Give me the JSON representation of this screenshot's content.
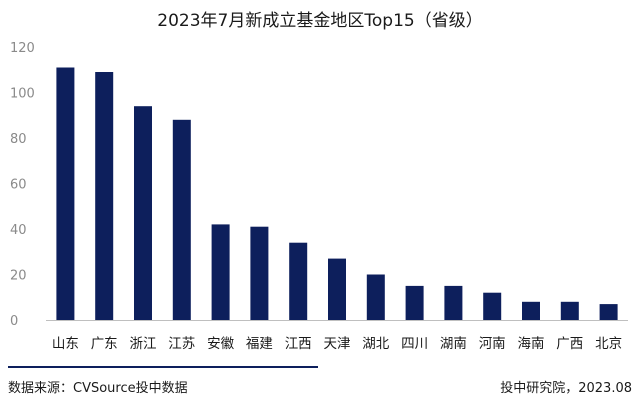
{
  "footer": {
    "source": "数据来源：CVSource投中数据",
    "credit": "投中研究院，2023.08"
  },
  "colors": {
    "bar": "#0d1f5c",
    "axis": "#bfbfbf",
    "footer_line": "#0d1f5c"
  },
  "chart_data": {
    "type": "bar",
    "title": "2023年7月新成立基金地区Top15（省级）",
    "xlabel": "",
    "ylabel": "",
    "categories": [
      "山东",
      "广东",
      "浙江",
      "江苏",
      "安徽",
      "福建",
      "江西",
      "天津",
      "湖北",
      "四川",
      "湖南",
      "河南",
      "海南",
      "广西",
      "北京"
    ],
    "values": [
      111,
      109,
      94,
      88,
      42,
      41,
      34,
      27,
      20,
      15,
      15,
      12,
      8,
      8,
      7
    ],
    "ylim": [
      0,
      120
    ],
    "yticks": [
      0,
      20,
      40,
      60,
      80,
      100,
      120
    ],
    "grid": false,
    "legend": "none"
  }
}
